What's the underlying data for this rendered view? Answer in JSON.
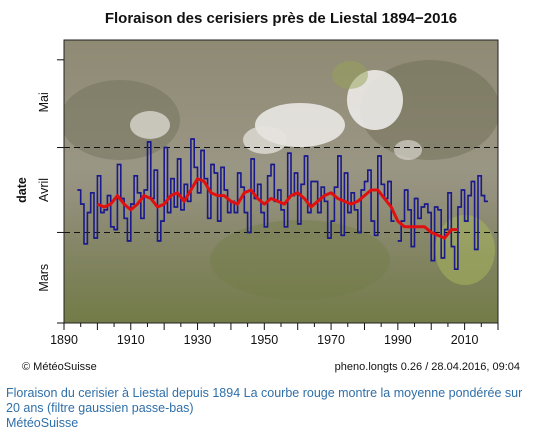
{
  "chart_data": {
    "type": "line",
    "title": "Floraison des cerisiers près de Liestal 1894−2016",
    "ylabel": "date",
    "y_tick_labels": [
      "Mars",
      "Avril",
      "Mai"
    ],
    "x_ticks": [
      1890,
      1910,
      1930,
      1950,
      1970,
      1990,
      2010
    ],
    "xlim": [
      1890,
      2020
    ],
    "ylim_day_of_year": [
      59,
      159
    ],
    "reference_lines_day_of_year": [
      91,
      121
    ],
    "background": "photo of a wooded hillside with flowering cherry trees",
    "series": [
      {
        "type": "step",
        "color": "#1a1a8c",
        "x": [
          1894,
          1895,
          1896,
          1897,
          1898,
          1899,
          1900,
          1901,
          1902,
          1903,
          1904,
          1905,
          1906,
          1907,
          1908,
          1909,
          1910,
          1911,
          1912,
          1913,
          1914,
          1915,
          1916,
          1917,
          1918,
          1919,
          1920,
          1921,
          1922,
          1923,
          1924,
          1925,
          1926,
          1927,
          1928,
          1929,
          1930,
          1931,
          1932,
          1933,
          1934,
          1935,
          1936,
          1937,
          1938,
          1939,
          1940,
          1941,
          1942,
          1943,
          1944,
          1945,
          1946,
          1947,
          1948,
          1949,
          1950,
          1951,
          1952,
          1953,
          1954,
          1955,
          1956,
          1957,
          1958,
          1959,
          1960,
          1961,
          1962,
          1963,
          1964,
          1965,
          1966,
          1967,
          1968,
          1969,
          1970,
          1971,
          1972,
          1973,
          1974,
          1975,
          1976,
          1977,
          1978,
          1979,
          1980,
          1981,
          1982,
          1983,
          1984,
          1985,
          1986,
          1987,
          1988,
          1990,
          1991,
          1992,
          1993,
          1994,
          1995,
          1996,
          1997,
          1998,
          1999,
          2000,
          2001,
          2002,
          2003,
          2004,
          2005,
          2006,
          2007,
          2008,
          2009,
          2010,
          2011,
          2012,
          2013,
          2014,
          2015,
          2016
        ],
        "values": [
          106,
          101,
          87,
          98,
          105,
          89,
          111,
          98,
          99,
          104,
          93,
          92,
          115,
          103,
          96,
          88,
          101,
          111,
          105,
          96,
          106,
          123,
          103,
          113,
          88,
          95,
          121,
          98,
          110,
          100,
          117,
          99,
          108,
          102,
          124,
          114,
          105,
          120,
          110,
          96,
          115,
          112,
          95,
          114,
          106,
          98,
          102,
          98,
          112,
          107,
          98,
          91,
          117,
          103,
          108,
          98,
          93,
          111,
          115,
          102,
          106,
          99,
          93,
          119,
          104,
          112,
          94,
          108,
          118,
          98,
          109,
          109,
          98,
          107,
          102,
          89,
          95,
          107,
          118,
          90,
          112,
          98,
          105,
          99,
          91,
          106,
          109,
          113,
          95,
          90,
          118,
          108,
          103,
          109,
          95,
          88,
          95,
          106,
          99,
          86,
          103,
          96,
          100,
          101,
          98,
          81,
          100,
          99,
          82,
          92,
          105,
          86,
          78,
          100,
          106,
          95,
          104,
          109,
          85,
          111,
          104,
          102
        ]
      },
      {
        "type": "line",
        "color": "#e01010",
        "x": [
          1900,
          1902,
          1904,
          1906,
          1908,
          1910,
          1912,
          1914,
          1916,
          1918,
          1920,
          1922,
          1924,
          1926,
          1928,
          1930,
          1932,
          1934,
          1936,
          1938,
          1940,
          1942,
          1944,
          1946,
          1948,
          1950,
          1952,
          1954,
          1956,
          1958,
          1960,
          1962,
          1964,
          1966,
          1968,
          1970,
          1972,
          1974,
          1976,
          1978,
          1980,
          1982,
          1984,
          1986,
          1988,
          1990,
          1992,
          1994,
          1996,
          1998,
          2000,
          2002,
          2004,
          2006,
          2008
        ],
        "values": [
          101,
          100,
          101,
          104,
          101,
          99,
          101,
          104,
          103,
          100,
          101,
          104,
          105,
          102,
          106,
          110,
          109,
          105,
          104,
          104,
          102,
          101,
          105,
          106,
          103,
          101,
          103,
          102,
          101,
          104,
          105,
          103,
          100,
          102,
          104,
          105,
          103,
          102,
          101,
          102,
          104,
          106,
          106,
          103,
          100,
          95,
          93,
          93,
          93,
          93,
          91,
          90,
          89,
          92,
          92
        ]
      }
    ]
  },
  "header": {
    "title": "Floraison des cerisiers près de Liestal 1894−2016"
  },
  "footer": {
    "copyright": "© MétéoSuisse",
    "meta": "pheno.longts 0.26 / 28.04.2016, 09:04"
  },
  "caption": {
    "line1": "Floraison du cerisier à Liestal depuis 1894 La courbe rouge montre la moyenne pondérée sur",
    "line2": "20 ans (filtre gaussien passe-bas)",
    "line3": "MétéoSuisse"
  },
  "colors": {
    "step": "#1a1a8c",
    "smooth": "#e01010",
    "caption": "#2f6fa8"
  }
}
